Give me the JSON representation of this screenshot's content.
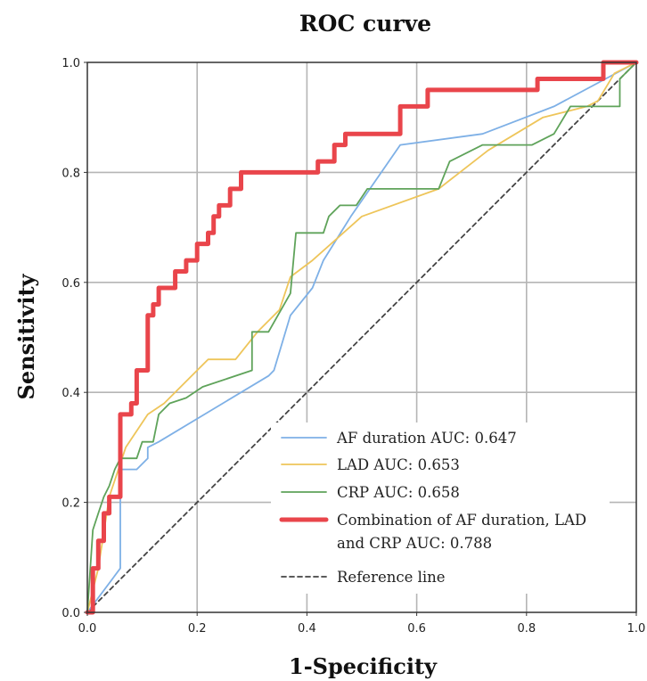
{
  "chart_data": {
    "type": "line",
    "title": "ROC curve",
    "xlabel": "1-Specificity",
    "ylabel": "Sensitivity",
    "xlim": [
      0,
      1
    ],
    "ylim": [
      0,
      1
    ],
    "xticks": [
      "0.0",
      "0.2",
      "0.4",
      "0.6",
      "0.8",
      "1.0"
    ],
    "yticks": [
      "0.0",
      "0.2",
      "0.4",
      "0.6",
      "0.8",
      "1.0"
    ],
    "grid": true,
    "legend_position": "bottom-right",
    "series": [
      {
        "name": "AF duration AUC: 0.647",
        "color": "#7eb0e6",
        "step": false,
        "points": [
          [
            0,
            0
          ],
          [
            0.06,
            0.08
          ],
          [
            0.06,
            0.1
          ],
          [
            0.06,
            0.26
          ],
          [
            0.09,
            0.26
          ],
          [
            0.11,
            0.28
          ],
          [
            0.11,
            0.3
          ],
          [
            0.13,
            0.31
          ],
          [
            0.33,
            0.43
          ],
          [
            0.34,
            0.44
          ],
          [
            0.37,
            0.54
          ],
          [
            0.41,
            0.59
          ],
          [
            0.43,
            0.64
          ],
          [
            0.48,
            0.72
          ],
          [
            0.57,
            0.85
          ],
          [
            0.72,
            0.87
          ],
          [
            0.85,
            0.92
          ],
          [
            1.0,
            1.0
          ]
        ]
      },
      {
        "name": "LAD AUC: 0.653",
        "color": "#eec55a",
        "step": false,
        "points": [
          [
            0,
            0
          ],
          [
            0.02,
            0.08
          ],
          [
            0.04,
            0.21
          ],
          [
            0.07,
            0.3
          ],
          [
            0.11,
            0.36
          ],
          [
            0.14,
            0.38
          ],
          [
            0.22,
            0.46
          ],
          [
            0.27,
            0.46
          ],
          [
            0.31,
            0.51
          ],
          [
            0.35,
            0.55
          ],
          [
            0.37,
            0.61
          ],
          [
            0.41,
            0.64
          ],
          [
            0.5,
            0.72
          ],
          [
            0.64,
            0.77
          ],
          [
            0.73,
            0.84
          ],
          [
            0.83,
            0.9
          ],
          [
            0.91,
            0.92
          ],
          [
            0.93,
            0.93
          ],
          [
            0.96,
            0.98
          ],
          [
            1.0,
            1.0
          ]
        ]
      },
      {
        "name": "CRP AUC: 0.658",
        "color": "#5fa35a",
        "step": false,
        "points": [
          [
            0,
            0
          ],
          [
            0.01,
            0.15
          ],
          [
            0.02,
            0.18
          ],
          [
            0.03,
            0.21
          ],
          [
            0.04,
            0.23
          ],
          [
            0.05,
            0.26
          ],
          [
            0.06,
            0.28
          ],
          [
            0.09,
            0.28
          ],
          [
            0.1,
            0.31
          ],
          [
            0.12,
            0.31
          ],
          [
            0.13,
            0.36
          ],
          [
            0.15,
            0.38
          ],
          [
            0.18,
            0.39
          ],
          [
            0.21,
            0.41
          ],
          [
            0.3,
            0.44
          ],
          [
            0.3,
            0.51
          ],
          [
            0.33,
            0.51
          ],
          [
            0.37,
            0.58
          ],
          [
            0.38,
            0.69
          ],
          [
            0.43,
            0.69
          ],
          [
            0.44,
            0.72
          ],
          [
            0.46,
            0.74
          ],
          [
            0.49,
            0.74
          ],
          [
            0.51,
            0.77
          ],
          [
            0.64,
            0.77
          ],
          [
            0.66,
            0.82
          ],
          [
            0.72,
            0.85
          ],
          [
            0.81,
            0.85
          ],
          [
            0.85,
            0.87
          ],
          [
            0.88,
            0.92
          ],
          [
            0.93,
            0.92
          ],
          [
            0.97,
            0.92
          ],
          [
            0.97,
            0.97
          ],
          [
            1.0,
            1.0
          ]
        ]
      },
      {
        "name": "Combination of AF duration, LAD and CRP AUC: 0.788",
        "color": "#e9454b",
        "step": true,
        "points": [
          [
            0,
            0
          ],
          [
            0.01,
            0
          ],
          [
            0.01,
            0.08
          ],
          [
            0.02,
            0.08
          ],
          [
            0.02,
            0.13
          ],
          [
            0.03,
            0.13
          ],
          [
            0.03,
            0.18
          ],
          [
            0.04,
            0.18
          ],
          [
            0.04,
            0.21
          ],
          [
            0.06,
            0.21
          ],
          [
            0.06,
            0.26
          ],
          [
            0.06,
            0.31
          ],
          [
            0.06,
            0.36
          ],
          [
            0.08,
            0.36
          ],
          [
            0.08,
            0.38
          ],
          [
            0.09,
            0.38
          ],
          [
            0.09,
            0.44
          ],
          [
            0.11,
            0.44
          ],
          [
            0.11,
            0.49
          ],
          [
            0.11,
            0.54
          ],
          [
            0.12,
            0.54
          ],
          [
            0.12,
            0.56
          ],
          [
            0.13,
            0.56
          ],
          [
            0.13,
            0.59
          ],
          [
            0.16,
            0.59
          ],
          [
            0.16,
            0.62
          ],
          [
            0.18,
            0.62
          ],
          [
            0.18,
            0.64
          ],
          [
            0.2,
            0.64
          ],
          [
            0.2,
            0.67
          ],
          [
            0.22,
            0.67
          ],
          [
            0.22,
            0.69
          ],
          [
            0.23,
            0.69
          ],
          [
            0.23,
            0.72
          ],
          [
            0.24,
            0.72
          ],
          [
            0.24,
            0.74
          ],
          [
            0.26,
            0.74
          ],
          [
            0.26,
            0.77
          ],
          [
            0.28,
            0.77
          ],
          [
            0.28,
            0.8
          ],
          [
            0.42,
            0.8
          ],
          [
            0.42,
            0.82
          ],
          [
            0.45,
            0.82
          ],
          [
            0.45,
            0.85
          ],
          [
            0.47,
            0.85
          ],
          [
            0.47,
            0.87
          ],
          [
            0.57,
            0.87
          ],
          [
            0.57,
            0.92
          ],
          [
            0.62,
            0.92
          ],
          [
            0.62,
            0.95
          ],
          [
            0.82,
            0.95
          ],
          [
            0.82,
            0.97
          ],
          [
            0.94,
            0.97
          ],
          [
            0.94,
            1.0
          ],
          [
            1.0,
            1.0
          ]
        ]
      },
      {
        "name": "Reference line",
        "color": "#444444",
        "dashed": true,
        "step": false,
        "points": [
          [
            0,
            0
          ],
          [
            1,
            1
          ]
        ]
      }
    ],
    "legend": {
      "lines": [
        [
          "AF duration AUC: 0.647"
        ],
        [
          "LAD AUC: 0.653"
        ],
        [
          "CRP AUC: 0.658"
        ],
        [
          "Combination of AF duration, LAD",
          "and CRP AUC: 0.788"
        ],
        [
          "Reference line"
        ]
      ]
    }
  }
}
